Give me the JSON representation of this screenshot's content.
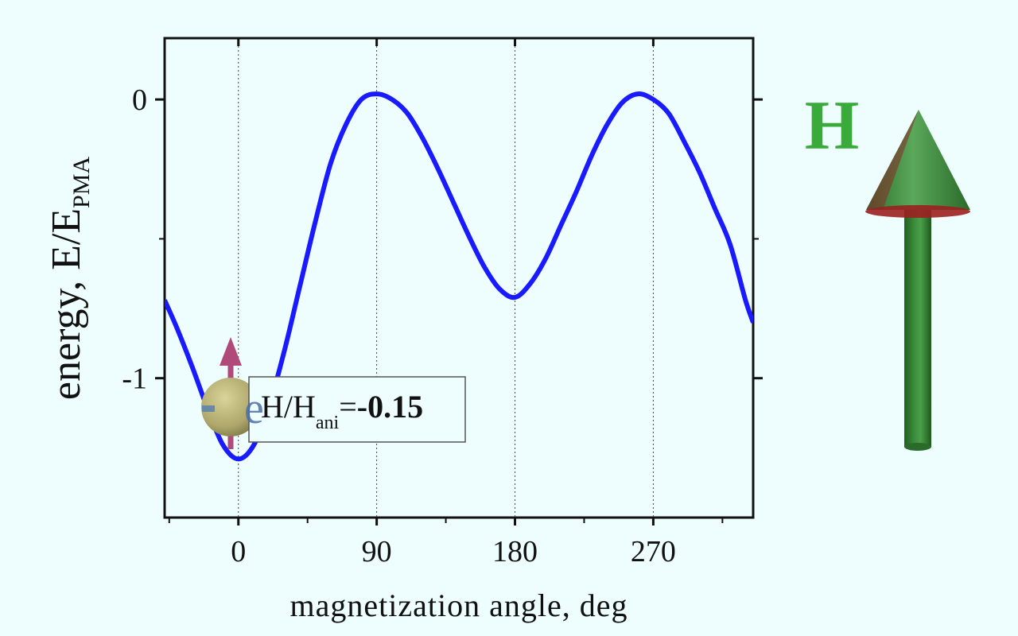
{
  "chart_data": {
    "type": "line",
    "xlabel": "magnetization angle, deg",
    "ylabel": "energy, E/E",
    "ylabel_subscript": "PMA",
    "xlim": [
      -48,
      335
    ],
    "ylim": [
      -1.5,
      0.22
    ],
    "xticks": [
      0,
      90,
      180,
      270
    ],
    "xtick_labels": [
      "0",
      "90",
      "180",
      "270"
    ],
    "yticks": [
      0,
      -1
    ],
    "ytick_labels": [
      "0",
      "-1"
    ],
    "grid": "vertical dotted at x ticks",
    "series": [
      {
        "color": "#1a1aff",
        "x": [
          -48,
          -40,
          -30,
          -20,
          -10,
          0,
          10,
          20,
          30,
          40,
          50,
          60,
          70,
          80,
          90,
          100,
          110,
          120,
          130,
          140,
          150,
          160,
          170,
          180,
          190,
          200,
          210,
          220,
          230,
          240,
          250,
          260,
          270,
          280,
          290,
          300,
          310,
          320,
          330,
          335
        ],
        "y": [
          -0.72,
          -0.82,
          -0.96,
          -1.11,
          -1.24,
          -1.29,
          -1.24,
          -1.1,
          -0.9,
          -0.67,
          -0.44,
          -0.23,
          -0.09,
          0.0,
          0.02,
          0.0,
          -0.05,
          -0.14,
          -0.25,
          -0.37,
          -0.49,
          -0.6,
          -0.68,
          -0.71,
          -0.66,
          -0.57,
          -0.45,
          -0.33,
          -0.2,
          -0.09,
          -0.01,
          0.02,
          0.0,
          -0.05,
          -0.15,
          -0.26,
          -0.39,
          -0.52,
          -0.72,
          -0.8
        ]
      }
    ],
    "annotation": {
      "text_prefix": "H/H",
      "text_subscript": "ani",
      "text_equals": "=",
      "value": "-0.15"
    }
  },
  "field_label": "H",
  "colors": {
    "background": "#eefefe",
    "curve": "#1a1aff",
    "field_arrow": "#2e8b2e",
    "field_arrow_tip": "#9b2020",
    "field_label": "#3aaa3a",
    "spin_arrow": "#b04a7a",
    "ball": "#b8b278"
  },
  "icons": {
    "field_arrow": "field-arrow-icon",
    "spin_ball": "electron-spin-icon"
  }
}
